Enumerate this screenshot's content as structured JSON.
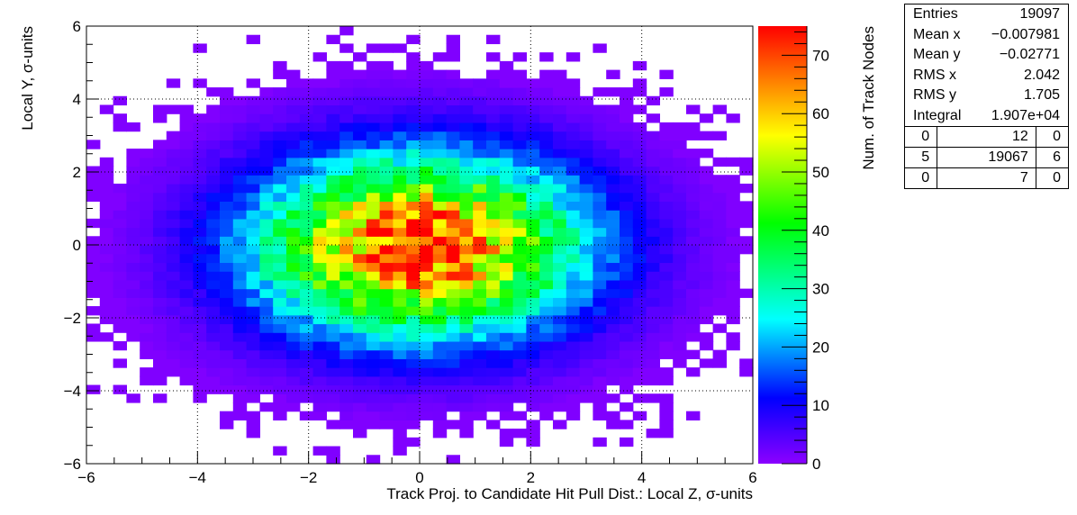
{
  "chart_data": {
    "type": "heatmap",
    "xlabel": "Track Proj. to Candidate Hit Pull Dist.: Local Z, σ-units",
    "ylabel": "Local Y, σ-units",
    "xlim": [
      -6,
      6
    ],
    "ylim": [
      -6,
      6
    ],
    "x_ticks": [
      "−6",
      "−4",
      "−2",
      "0",
      "2",
      "4",
      "6"
    ],
    "y_ticks": [
      "−6",
      "−4",
      "−2",
      "0",
      "2",
      "4",
      "6"
    ],
    "grid": true,
    "distribution": {
      "shape": "2d-gaussian",
      "mean_x": -0.007981,
      "mean_y": -0.02771,
      "rms_x": 2.042,
      "rms_y": 1.705
    },
    "colorbar": {
      "label": "Num. of Track Nodes",
      "range": [
        0,
        75
      ],
      "ticks": [
        "0",
        "10",
        "20",
        "30",
        "40",
        "50",
        "60",
        "70"
      ],
      "colors": [
        "#8c00ff",
        "#0000ff",
        "#00ffff",
        "#00ff00",
        "#ffff00",
        "#ff0000"
      ]
    }
  },
  "stats": {
    "rows": [
      {
        "label": "Entries",
        "value": "19097"
      },
      {
        "label": "Mean x",
        "value": "−0.007981"
      },
      {
        "label": "Mean y",
        "value": "−0.02771"
      },
      {
        "label": "RMS x",
        "value": "2.042"
      },
      {
        "label": "RMS y",
        "value": "1.705"
      },
      {
        "label": "Integral",
        "value": "1.907e+04"
      }
    ],
    "counts": [
      [
        "0",
        "12",
        "0"
      ],
      [
        "5",
        "19067",
        "6"
      ],
      [
        "0",
        "7",
        "0"
      ]
    ]
  }
}
